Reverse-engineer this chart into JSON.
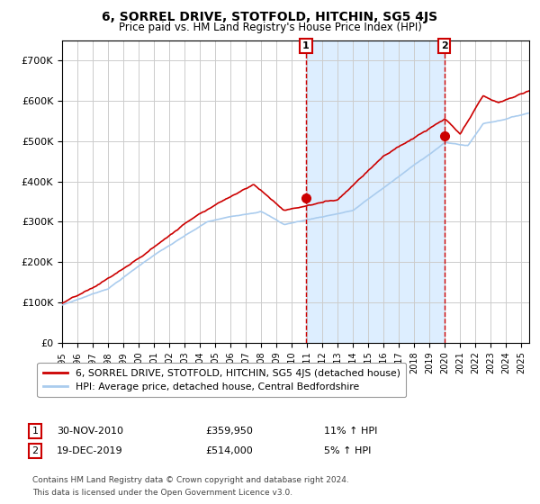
{
  "title": "6, SORREL DRIVE, STOTFOLD, HITCHIN, SG5 4JS",
  "subtitle": "Price paid vs. HM Land Registry's House Price Index (HPI)",
  "legend_line1": "6, SORREL DRIVE, STOTFOLD, HITCHIN, SG5 4JS (detached house)",
  "legend_line2": "HPI: Average price, detached house, Central Bedfordshire",
  "transaction1_label": "1",
  "transaction1_date": "30-NOV-2010",
  "transaction1_price": "£359,950",
  "transaction1_hpi": "11% ↑ HPI",
  "transaction2_label": "2",
  "transaction2_date": "19-DEC-2019",
  "transaction2_price": "£514,000",
  "transaction2_hpi": "5% ↑ HPI",
  "footnote_line1": "Contains HM Land Registry data © Crown copyright and database right 2024.",
  "footnote_line2": "This data is licensed under the Open Government Licence v3.0.",
  "hpi_color": "#aaccee",
  "price_color": "#cc0000",
  "marker_color": "#cc0000",
  "dashed_line_color": "#cc0000",
  "shading_color": "#ddeeff",
  "grid_color": "#cccccc",
  "background_color": "#ffffff",
  "ylim": [
    0,
    750000
  ],
  "yticks": [
    0,
    100000,
    200000,
    300000,
    400000,
    500000,
    600000,
    700000
  ],
  "t1_x": 2010.917,
  "t1_y": 359950,
  "t2_x": 2019.958,
  "t2_y": 514000,
  "xlim_start": 1995,
  "xlim_end": 2025.5
}
